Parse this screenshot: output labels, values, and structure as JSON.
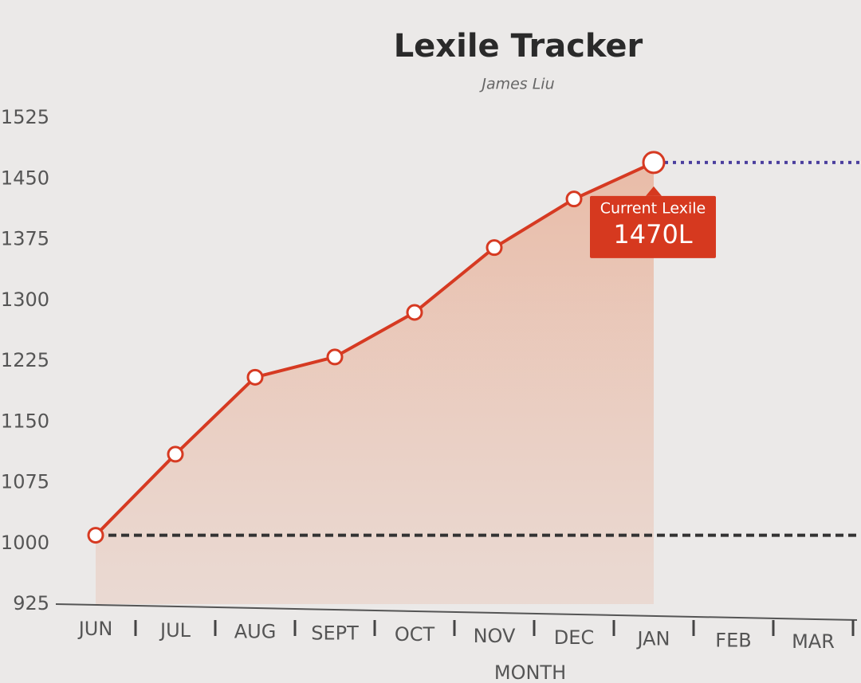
{
  "chart_data": {
    "type": "line",
    "title": "Lexile Tracker",
    "subtitle": "James Liu",
    "x_label": "MONTH",
    "categories": [
      "JUN",
      "JUL",
      "AUG",
      "SEPT",
      "OCT",
      "NOV",
      "DEC",
      "JAN",
      "FEB",
      "MAR"
    ],
    "values": [
      1010,
      1110,
      1205,
      1230,
      1285,
      1365,
      1425,
      1470,
      null,
      null
    ],
    "color": "#d63a22",
    "area_color": "#e9c7b8",
    "ylim": [
      925,
      1525
    ],
    "yticks": [
      925,
      1000,
      1075,
      1150,
      1225,
      1300,
      1375,
      1450,
      1525
    ],
    "grid": false,
    "reference_lines": [
      {
        "value": 1010,
        "color": "#333333",
        "style": "dashed"
      },
      {
        "value": 1470,
        "color": "#4b3f9e",
        "style": "dotted"
      }
    ],
    "tooltip": {
      "title": "Current Lexile",
      "value": 1470,
      "label": "1470L",
      "color": "#d6391f"
    }
  }
}
